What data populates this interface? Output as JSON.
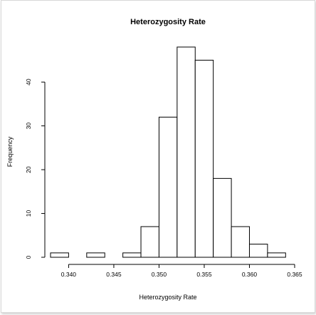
{
  "chart_data": {
    "type": "bar",
    "title": "Heterozygosity Rate",
    "xlabel": "Heterozygosity Rate",
    "ylabel": "Frequency",
    "xlim": [
      0.338,
      0.365
    ],
    "ylim": [
      0,
      48
    ],
    "bin_edges": [
      0.338,
      0.34,
      0.342,
      0.344,
      0.346,
      0.348,
      0.35,
      0.352,
      0.354,
      0.356,
      0.358,
      0.36,
      0.362,
      0.364
    ],
    "values": [
      1,
      0,
      1,
      0,
      1,
      7,
      32,
      48,
      45,
      18,
      7,
      3,
      1
    ],
    "x_ticks": [
      0.34,
      0.345,
      0.35,
      0.355,
      0.36,
      0.365
    ],
    "x_tick_labels": [
      "0.340",
      "0.345",
      "0.350",
      "0.355",
      "0.360",
      "0.365"
    ],
    "y_ticks": [
      0,
      10,
      20,
      30,
      40
    ],
    "y_tick_labels": [
      "0",
      "10",
      "20",
      "30",
      "40"
    ],
    "grid": false,
    "legend": "none",
    "bar_fill": "#ffffff",
    "bar_stroke": "#000000"
  }
}
